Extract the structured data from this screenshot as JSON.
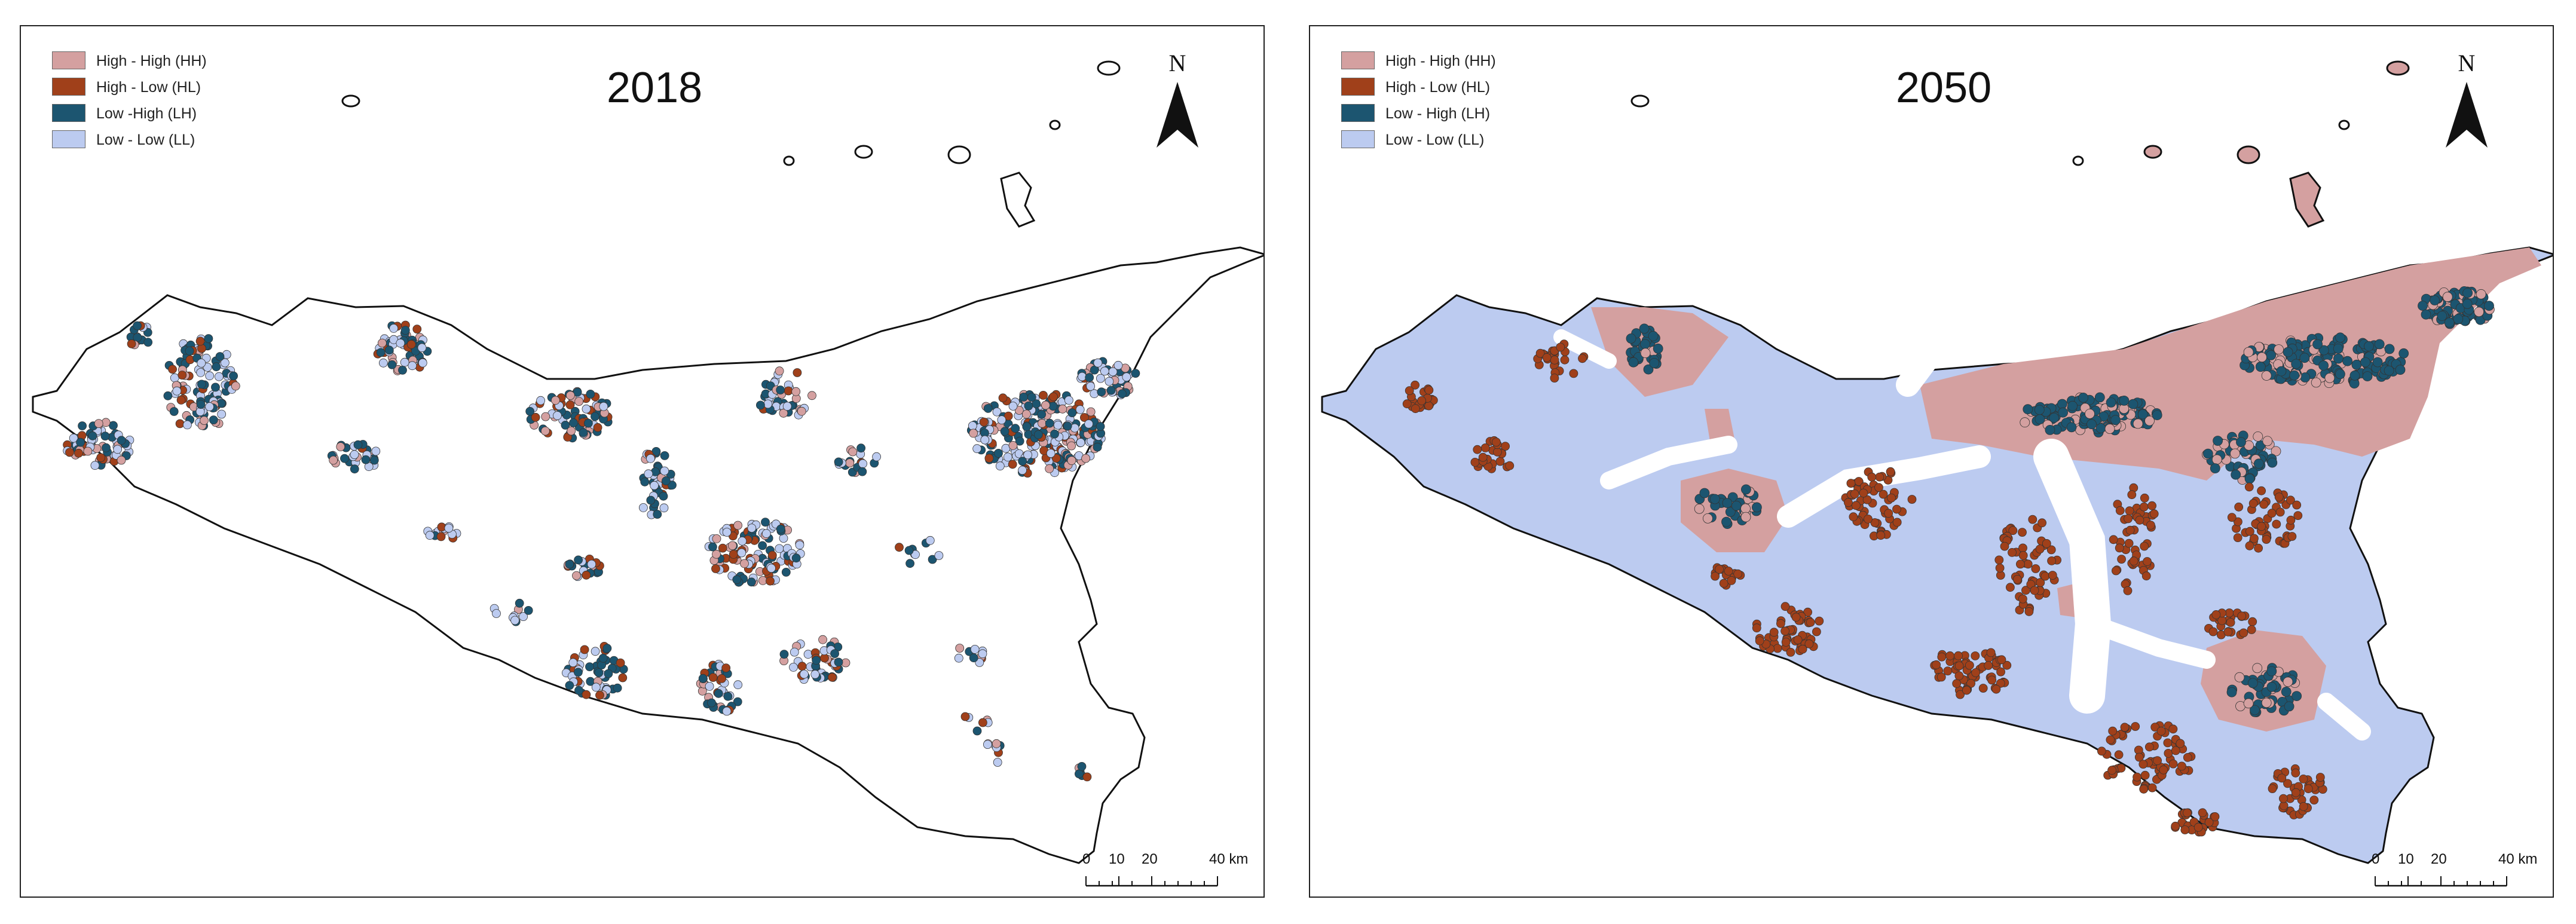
{
  "colors": {
    "HH": "#d4a0a0",
    "HL": "#a0401a",
    "LH": "#1c5570",
    "LL": "#bccbf0",
    "coast": "#111111"
  },
  "panels": [
    {
      "year": "2018",
      "legend": [
        {
          "label": "High - High (HH)",
          "color": "#d4a0a0"
        },
        {
          "label": "High - Low (HL)",
          "color": "#a0401a"
        },
        {
          "label": "Low -High (LH)",
          "color": "#1c5570"
        },
        {
          "label": "Low - Low (LL)",
          "color": "#bccbf0"
        }
      ],
      "north_label": "N",
      "scale": {
        "ticks": [
          "0",
          "10",
          "20",
          "40 km"
        ]
      }
    },
    {
      "year": "2050",
      "legend": [
        {
          "label": "High - High (HH)",
          "color": "#d4a0a0"
        },
        {
          "label": "High - Low (HL)",
          "color": "#a0401a"
        },
        {
          "label": "Low - High (LH)",
          "color": "#1c5570"
        },
        {
          "label": "Low - Low (LL)",
          "color": "#bccbf0"
        }
      ],
      "north_label": "N",
      "scale": {
        "ticks": [
          "0",
          "10",
          "20",
          "40 km"
        ]
      }
    }
  ]
}
